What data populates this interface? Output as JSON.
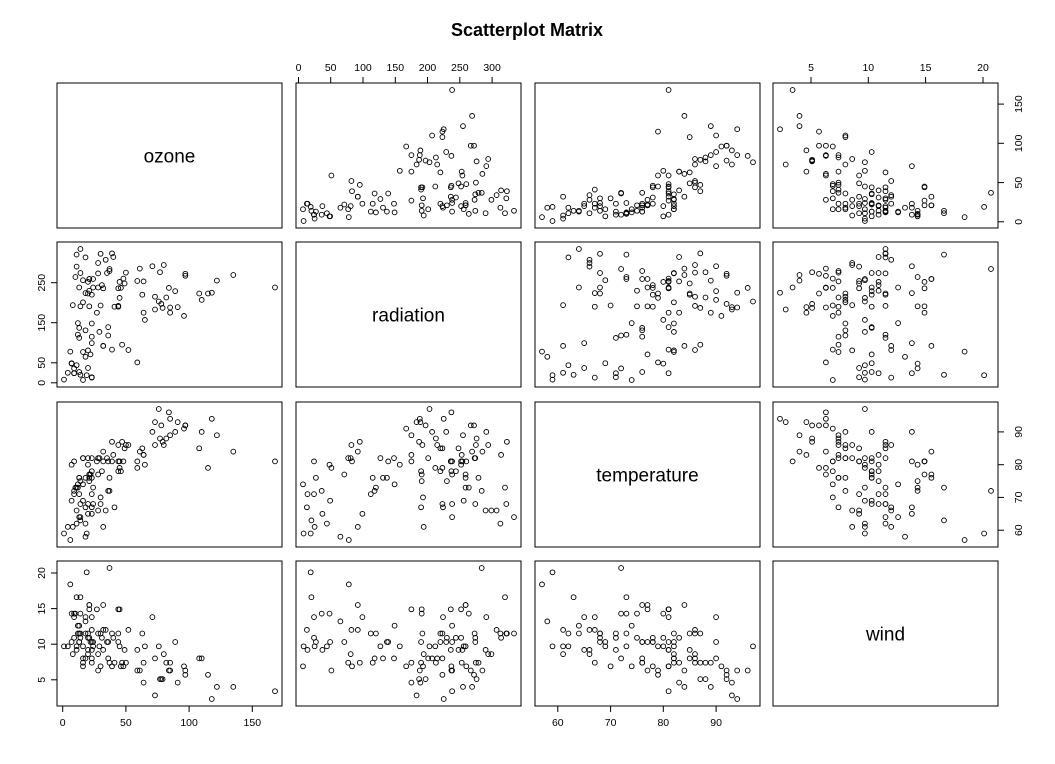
{
  "title": "Scatterplot Matrix",
  "chart_data": {
    "type": "scatter",
    "title": "Scatterplot Matrix",
    "variables": [
      "ozone",
      "radiation",
      "temperature",
      "wind"
    ],
    "ranges": {
      "ozone": [
        1,
        168
      ],
      "radiation": [
        7,
        334
      ],
      "temperature": [
        57,
        97
      ],
      "wind": [
        2.3,
        20.7
      ]
    },
    "ticks": {
      "ozone": [
        0,
        50,
        100,
        150
      ],
      "radiation": [
        0,
        50,
        100,
        150,
        200,
        250,
        300
      ],
      "temperature": [
        60,
        70,
        80,
        90
      ],
      "wind": [
        5,
        10,
        15,
        20
      ]
    },
    "radiation_left_ticks": [
      0,
      50,
      150,
      250
    ],
    "columns": [
      "ozone",
      "radiation",
      "temperature",
      "wind"
    ],
    "rows": [
      [
        41,
        190,
        67,
        7.4
      ],
      [
        36,
        118,
        72,
        8.0
      ],
      [
        12,
        149,
        74,
        12.6
      ],
      [
        18,
        313,
        62,
        11.5
      ],
      [
        28,
        299,
        66,
        8.6
      ],
      [
        23,
        99,
        65,
        13.8
      ],
      [
        19,
        19,
        59,
        20.1
      ],
      [
        8,
        194,
        61,
        8.6
      ],
      [
        16,
        256,
        69,
        9.7
      ],
      [
        11,
        290,
        66,
        9.2
      ],
      [
        14,
        274,
        68,
        10.9
      ],
      [
        18,
        65,
        58,
        13.2
      ],
      [
        14,
        334,
        64,
        11.5
      ],
      [
        34,
        307,
        66,
        12.0
      ],
      [
        6,
        78,
        57,
        18.4
      ],
      [
        30,
        322,
        68,
        11.5
      ],
      [
        11,
        44,
        62,
        9.7
      ],
      [
        1,
        8,
        59,
        9.7
      ],
      [
        11,
        320,
        73,
        16.6
      ],
      [
        4,
        25,
        61,
        9.7
      ],
      [
        32,
        92,
        61,
        12.0
      ],
      [
        23,
        13,
        67,
        12.0
      ],
      [
        45,
        252,
        81,
        14.9
      ],
      [
        115,
        223,
        79,
        5.7
      ],
      [
        37,
        279,
        76,
        7.4
      ],
      [
        29,
        127,
        82,
        9.7
      ],
      [
        71,
        291,
        90,
        13.8
      ],
      [
        39,
        323,
        87,
        11.5
      ],
      [
        23,
        148,
        82,
        8.0
      ],
      [
        21,
        191,
        77,
        14.9
      ],
      [
        37,
        284,
        72,
        20.7
      ],
      [
        20,
        37,
        65,
        9.2
      ],
      [
        12,
        120,
        73,
        11.5
      ],
      [
        13,
        137,
        76,
        10.3
      ],
      [
        135,
        269,
        84,
        4.0
      ],
      [
        49,
        248,
        85,
        9.2
      ],
      [
        32,
        236,
        81,
        9.2
      ],
      [
        64,
        175,
        83,
        4.6
      ],
      [
        40,
        314,
        83,
        10.9
      ],
      [
        77,
        276,
        88,
        5.1
      ],
      [
        97,
        267,
        92,
        6.3
      ],
      [
        97,
        272,
        92,
        5.7
      ],
      [
        85,
        175,
        89,
        7.4
      ],
      [
        10,
        264,
        73,
        14.3
      ],
      [
        27,
        175,
        81,
        14.9
      ],
      [
        7,
        48,
        80,
        14.3
      ],
      [
        48,
        260,
        81,
        6.9
      ],
      [
        35,
        274,
        82,
        10.3
      ],
      [
        61,
        285,
        84,
        6.3
      ],
      [
        79,
        187,
        87,
        5.1
      ],
      [
        63,
        220,
        85,
        11.5
      ],
      [
        16,
        7,
        74,
        6.9
      ],
      [
        80,
        294,
        86,
        8.6
      ],
      [
        108,
        223,
        85,
        8.0
      ],
      [
        20,
        81,
        82,
        8.6
      ],
      [
        52,
        82,
        86,
        12.0
      ],
      [
        82,
        213,
        88,
        7.4
      ],
      [
        50,
        275,
        86,
        7.4
      ],
      [
        64,
        253,
        83,
        7.4
      ],
      [
        59,
        254,
        81,
        9.2
      ],
      [
        39,
        83,
        81,
        6.9
      ],
      [
        9,
        24,
        81,
        13.8
      ],
      [
        16,
        77,
        82,
        7.4
      ],
      [
        122,
        255,
        89,
        4.0
      ],
      [
        89,
        229,
        90,
        10.3
      ],
      [
        110,
        207,
        90,
        8.0
      ],
      [
        44,
        192,
        86,
        11.5
      ],
      [
        28,
        273,
        82,
        11.5
      ],
      [
        65,
        157,
        80,
        9.7
      ],
      [
        22,
        71,
        77,
        10.3
      ],
      [
        59,
        51,
        79,
        6.3
      ],
      [
        23,
        115,
        76,
        7.4
      ],
      [
        31,
        244,
        78,
        10.9
      ],
      [
        44,
        190,
        78,
        10.3
      ],
      [
        21,
        259,
        77,
        15.5
      ],
      [
        9,
        36,
        72,
        14.3
      ],
      [
        45,
        212,
        79,
        9.7
      ],
      [
        168,
        238,
        81,
        3.4
      ],
      [
        73,
        215,
        86,
        8.0
      ],
      [
        76,
        203,
        97,
        9.7
      ],
      [
        118,
        225,
        94,
        2.3
      ],
      [
        84,
        237,
        96,
        6.3
      ],
      [
        85,
        188,
        94,
        6.3
      ],
      [
        96,
        167,
        91,
        6.9
      ],
      [
        78,
        197,
        92,
        5.1
      ],
      [
        73,
        183,
        93,
        2.8
      ],
      [
        91,
        189,
        93,
        4.6
      ],
      [
        47,
        95,
        87,
        7.4
      ],
      [
        32,
        92,
        84,
        15.5
      ],
      [
        20,
        252,
        80,
        10.9
      ],
      [
        23,
        220,
        78,
        10.3
      ],
      [
        21,
        230,
        75,
        10.9
      ],
      [
        24,
        259,
        73,
        9.7
      ],
      [
        44,
        236,
        81,
        14.9
      ],
      [
        21,
        259,
        76,
        15.5
      ],
      [
        28,
        238,
        77,
        6.3
      ],
      [
        9,
        24,
        71,
        10.9
      ],
      [
        13,
        112,
        71,
        11.5
      ],
      [
        46,
        237,
        78,
        6.9
      ],
      [
        18,
        224,
        67,
        13.8
      ],
      [
        13,
        27,
        76,
        10.3
      ],
      [
        24,
        238,
        68,
        10.3
      ],
      [
        16,
        201,
        82,
        8.0
      ],
      [
        13,
        238,
        64,
        12.6
      ],
      [
        23,
        14,
        71,
        9.2
      ],
      [
        36,
        139,
        81,
        10.3
      ],
      [
        7,
        49,
        69,
        10.3
      ],
      [
        14,
        20,
        63,
        16.6
      ],
      [
        30,
        193,
        70,
        6.9
      ],
      [
        14,
        191,
        75,
        14.3
      ],
      [
        18,
        131,
        76,
        8.0
      ],
      [
        20,
        223,
        68,
        11.5
      ]
    ]
  }
}
